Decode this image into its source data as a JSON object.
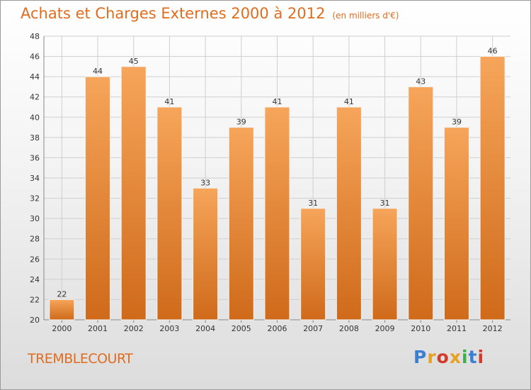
{
  "header": {
    "title": "Achats et Charges Externes 2000 à 2012",
    "subtitle": "(en milliers d'€)"
  },
  "footer": {
    "location": "TREMBLECOURT",
    "logo_text": "Proxiti",
    "logo_colors": [
      "#3a7fd0",
      "#e8a020",
      "#d23a2a",
      "#e8a020",
      "#3ab04a",
      "#3a7fd0",
      "#d23a2a"
    ]
  },
  "colors": {
    "bar_top": "#f6a55a",
    "bar_bottom": "#cf6a1a",
    "grid": "#cfcfcf",
    "axis": "#888888"
  },
  "chart_data": {
    "type": "bar",
    "title": "Achats et Charges Externes 2000 à 2012",
    "subtitle": "(en milliers d'€)",
    "categories": [
      "2000",
      "2001",
      "2002",
      "2003",
      "2004",
      "2005",
      "2006",
      "2007",
      "2008",
      "2009",
      "2010",
      "2011",
      "2012"
    ],
    "values": [
      22,
      44,
      45,
      41,
      33,
      39,
      41,
      31,
      41,
      31,
      43,
      39,
      46
    ],
    "ylim": [
      20,
      48
    ],
    "yticks": [
      20,
      22,
      24,
      26,
      28,
      30,
      32,
      34,
      36,
      38,
      40,
      42,
      44,
      46,
      48
    ],
    "grid": true,
    "data_labels": true
  }
}
